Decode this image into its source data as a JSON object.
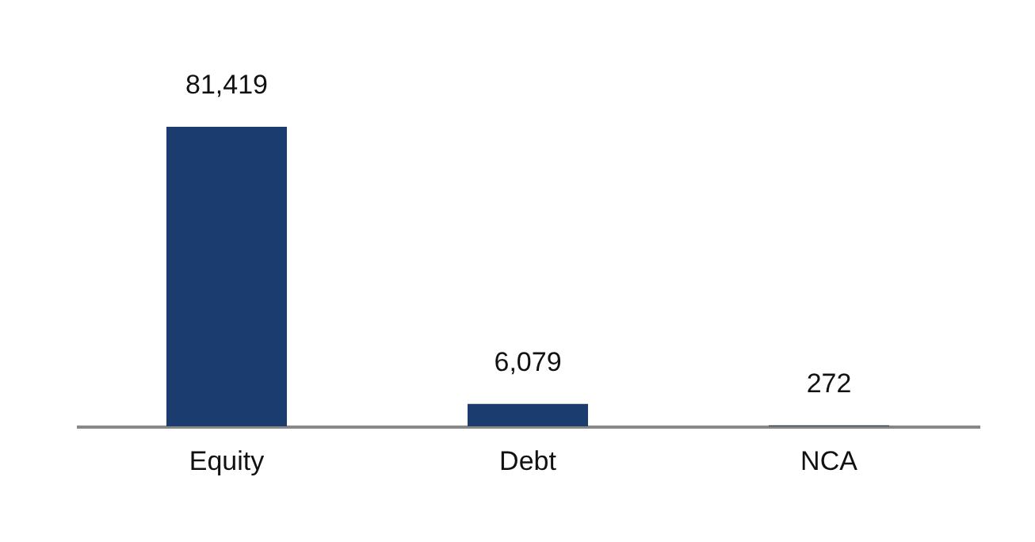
{
  "chart_data": {
    "type": "bar",
    "categories": [
      "Equity",
      "Debt",
      "NCA"
    ],
    "values": [
      81419,
      6079,
      272
    ],
    "value_labels": [
      "81,419",
      "6,079",
      "272"
    ],
    "color": "#1b3c6e"
  }
}
